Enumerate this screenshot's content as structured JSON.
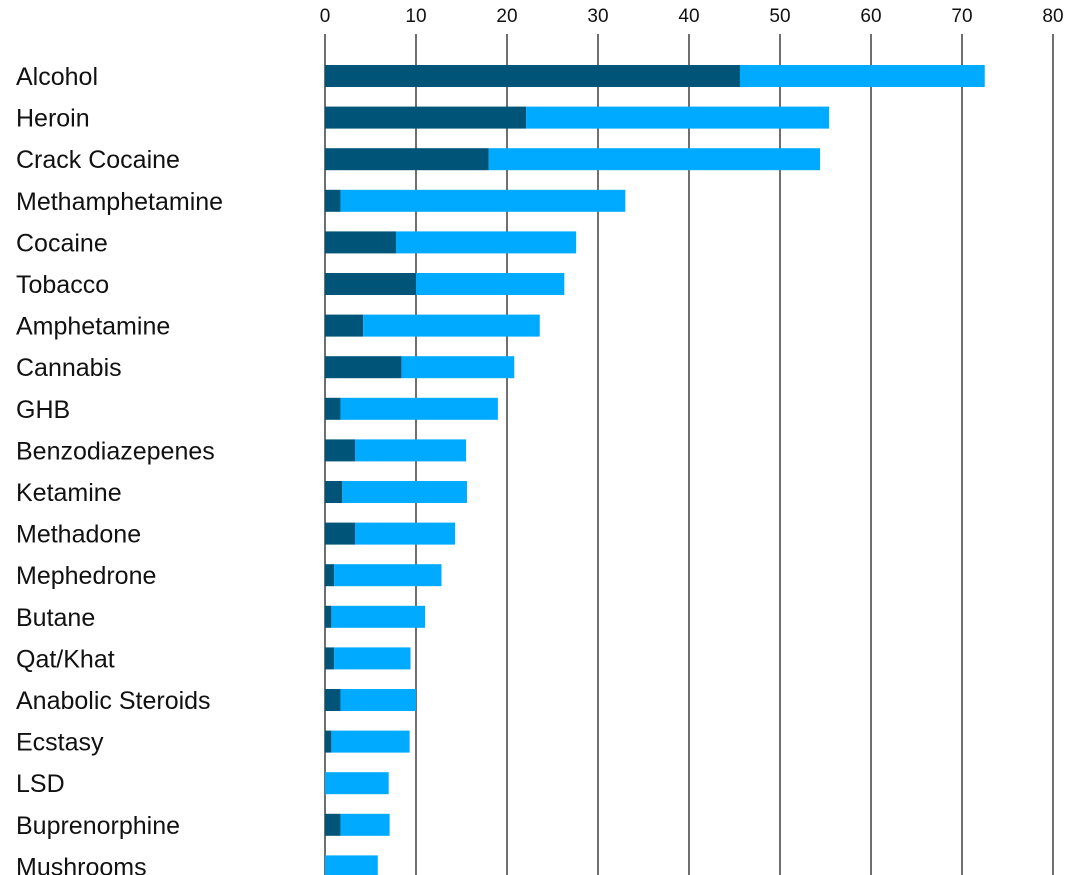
{
  "chart_data": {
    "type": "bar",
    "orientation": "horizontal",
    "stacked": true,
    "title": "",
    "xlabel": "",
    "ylabel": "",
    "xlim": [
      0,
      80
    ],
    "x_ticks": [
      0,
      10,
      20,
      30,
      40,
      50,
      60,
      70,
      80
    ],
    "x_tick_labels": [
      "0",
      "10",
      "20",
      "30",
      "40",
      "50",
      "60",
      "70",
      "80"
    ],
    "axis_position": "top",
    "grid": "vertical",
    "legend": "none",
    "categories": [
      "Alcohol",
      "Heroin",
      "Crack Cocaine",
      "Methamphetamine",
      "Cocaine",
      "Tobacco",
      "Amphetamine",
      "Cannabis",
      "GHB",
      "Benzodiazepenes",
      "Ketamine",
      "Methadone",
      "Mephedrone",
      "Butane",
      "Qat/Khat",
      "Anabolic Steroids",
      "Ecstasy",
      "LSD",
      "Buprenorphine",
      "Mushrooms"
    ],
    "series": [
      {
        "color": "#005478",
        "values": [
          45.6,
          22.1,
          18.0,
          1.7,
          7.8,
          10.0,
          4.2,
          8.4,
          1.7,
          3.3,
          1.9,
          3.3,
          1.0,
          0.7,
          1.0,
          1.7,
          0.7,
          0.0,
          1.7,
          0.0
        ]
      },
      {
        "color": "#00AAFF",
        "values": [
          26.9,
          33.3,
          36.4,
          31.3,
          19.8,
          16.3,
          19.4,
          12.4,
          17.3,
          12.2,
          13.7,
          11.0,
          11.8,
          10.3,
          8.4,
          8.3,
          8.6,
          7.0,
          5.4,
          5.8
        ]
      }
    ]
  }
}
